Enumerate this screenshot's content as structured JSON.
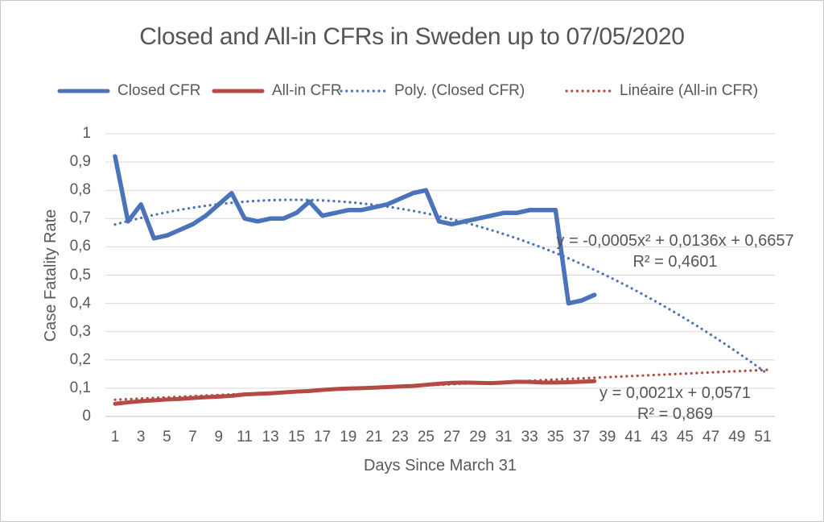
{
  "title": "Closed and All-in CFRs in Sweden up to 07/05/2020",
  "colors": {
    "closed_cfr_blue": "#4A73B9",
    "all_in_cfr_red": "#B54A44",
    "gridline_gray": "#D9D9D9",
    "axis_text_gray": "#595959"
  },
  "legend": [
    {
      "label": "Closed CFR",
      "style": "solid",
      "color": "#4A73B9"
    },
    {
      "label": "All-in CFR",
      "style": "solid",
      "color": "#B54A44"
    },
    {
      "label": "Poly. (Closed CFR)",
      "style": "dotted",
      "color": "#4A73B9"
    },
    {
      "label": "Linéaire (All-in CFR)",
      "style": "dotted",
      "color": "#B54A44"
    }
  ],
  "chart_data": {
    "type": "line",
    "title": "Closed and All-in CFRs in Sweden up to 07/05/2020",
    "xlabel": "Days Since March 31",
    "ylabel": "Case Fatality Rate",
    "xlim": [
      0.1,
      51.9
    ],
    "ylim": [
      0,
      1
    ],
    "grid": true,
    "legend_position": "top",
    "x_ticks": [
      1,
      3,
      5,
      7,
      9,
      11,
      13,
      15,
      17,
      19,
      21,
      23,
      25,
      27,
      29,
      31,
      33,
      35,
      37,
      39,
      41,
      43,
      45,
      47,
      49,
      51
    ],
    "y_tick_values": [
      0,
      0.1,
      0.2,
      0.3,
      0.4,
      0.5,
      0.6,
      0.7,
      0.8,
      0.9,
      1
    ],
    "y_tick_labels": [
      "0",
      "0,1",
      "0,2",
      "0,3",
      "0,4",
      "0,5",
      "0,6",
      "0,7",
      "0,8",
      "0,9",
      "1"
    ],
    "days": [
      1,
      2,
      3,
      4,
      5,
      6,
      7,
      8,
      9,
      10,
      11,
      12,
      13,
      14,
      15,
      16,
      17,
      18,
      19,
      20,
      21,
      22,
      23,
      24,
      25,
      26,
      27,
      28,
      29,
      30,
      31,
      32,
      33,
      34,
      35,
      36,
      37,
      38
    ],
    "series": [
      {
        "name": "Closed CFR",
        "color": "#4A73B9",
        "style": "solid",
        "values": [
          0.92,
          0.69,
          0.75,
          0.63,
          0.64,
          0.66,
          0.68,
          0.71,
          0.75,
          0.79,
          0.7,
          0.69,
          0.7,
          0.7,
          0.72,
          0.76,
          0.71,
          0.72,
          0.73,
          0.73,
          0.74,
          0.75,
          0.77,
          0.79,
          0.8,
          0.69,
          0.68,
          0.69,
          0.7,
          0.71,
          0.72,
          0.72,
          0.73,
          0.73,
          0.73,
          0.4,
          0.41,
          0.43
        ]
      },
      {
        "name": "All-in CFR",
        "color": "#B54A44",
        "style": "solid",
        "values": [
          0.045,
          0.05,
          0.054,
          0.057,
          0.06,
          0.062,
          0.065,
          0.068,
          0.07,
          0.073,
          0.078,
          0.08,
          0.082,
          0.085,
          0.088,
          0.09,
          0.094,
          0.097,
          0.099,
          0.1,
          0.102,
          0.104,
          0.106,
          0.108,
          0.112,
          0.116,
          0.119,
          0.12,
          0.119,
          0.118,
          0.12,
          0.123,
          0.122,
          0.12,
          0.12,
          0.121,
          0.123,
          0.125
        ]
      }
    ],
    "trendlines": [
      {
        "name": "Poly. (Closed CFR)",
        "color": "#4A73B9",
        "style": "dotted",
        "equation_text": "y = -0,0005x² + 0,0136x + 0,6657",
        "r2_text": "R² = 0,4601",
        "equation_coeffs": [
          -0.0005,
          0.0136,
          0.6657
        ],
        "plot_coeffs": [
          -0.00046,
          0.0136,
          0.6657
        ],
        "x_range": [
          1,
          51.6
        ]
      },
      {
        "name": "Linéaire (All-in CFR)",
        "color": "#B54A44",
        "style": "dotted",
        "equation_text": "y = 0,0021x + 0,0571",
        "r2_text": "R² = 0,869",
        "equation_coeffs": [
          0.0021,
          0.0571
        ],
        "plot_coeffs": [
          0,
          0.0021,
          0.0571
        ],
        "x_range": [
          1,
          51.6
        ]
      }
    ]
  }
}
